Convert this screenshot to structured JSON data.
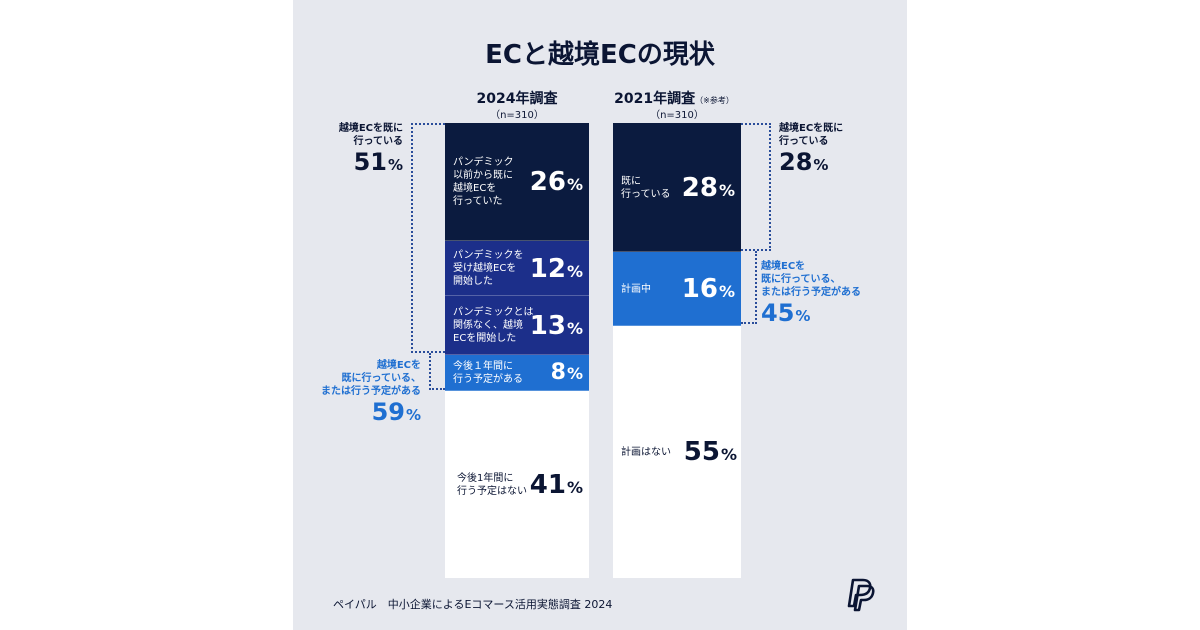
{
  "title": "ECと越境ECの現状",
  "colors": {
    "panel_bg": "#e6e8ee",
    "navy_dark": "#0b1b3f",
    "navy": "#1c2f8a",
    "blue": "#1f6fd1",
    "empty": "#ffffff",
    "text_dark": "#0b1533",
    "text_blue": "#1f6fd1"
  },
  "chart_data": {
    "type": "bar",
    "stacked": true,
    "unit": "%",
    "columns": [
      {
        "id": "y2024",
        "title": "2024年調査",
        "note": "",
        "sample": "（n=310）",
        "segments": [
          {
            "label": "パンデミック\n以前から既に\n越境ECを\n行っていた",
            "value": 26,
            "color": "#0b1b3f",
            "text_color": "#ffffff"
          },
          {
            "label": "パンデミックを\n受け越境ECを\n開始した",
            "value": 12,
            "color": "#1c2f8a",
            "text_color": "#ffffff"
          },
          {
            "label": "パンデミックとは\n関係なく、越境\nECを開始した",
            "value": 13,
            "color": "#1c2f8a",
            "text_color": "#ffffff"
          },
          {
            "label": "今後１年間に\n行う予定がある",
            "value": 8,
            "color": "#1f6fd1",
            "text_color": "#ffffff"
          },
          {
            "label": "今後1年間に\n行う予定はない",
            "value": 41,
            "color": "#ffffff",
            "text_color": "#0b1533"
          }
        ]
      },
      {
        "id": "y2021",
        "title": "2021年調査",
        "note": "（※参考）",
        "sample": "（n=310）",
        "segments": [
          {
            "label": "既に\n行っている",
            "value": 28,
            "color": "#0b1b3f",
            "text_color": "#ffffff"
          },
          {
            "label": "計画中",
            "value": 16,
            "color": "#1f6fd1",
            "text_color": "#ffffff"
          },
          {
            "label": "計画はない",
            "value": 55,
            "color": "#ffffff",
            "text_color": "#0b1533"
          }
        ]
      }
    ],
    "annotations": {
      "left_top": {
        "label": "越境ECを既に\n行っている",
        "value": 51
      },
      "left_bottom": {
        "label": "越境ECを\n既に行っている、\nまたは行う予定がある",
        "value": 59
      },
      "right_top": {
        "label": "越境ECを既に\n行っている",
        "value": 28
      },
      "right_bottom": {
        "label": "越境ECを\n既に行っている、\nまたは行う予定がある",
        "value": 45
      }
    }
  },
  "source": "ペイパル　中小企業によるEコマース活用実態調査 2024",
  "logo": {
    "icon": "paypal-logo-icon"
  }
}
